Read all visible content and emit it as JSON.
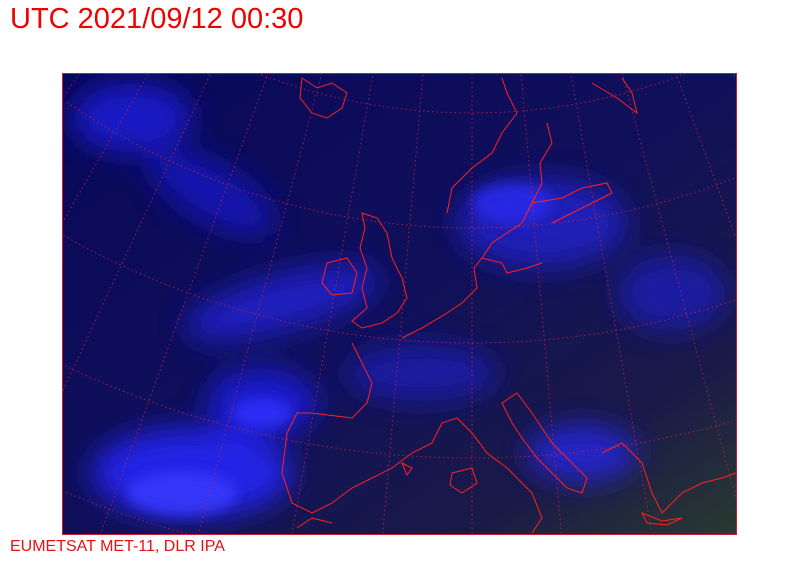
{
  "title": "UTC 2021/09/12 00:30",
  "credit": "EUMETSAT MET-11, DLR IPA",
  "map": {
    "type": "satellite-image",
    "region": "Europe",
    "colors": {
      "background": "#0a0a50",
      "clouds": "#2a2aff",
      "coastline": "#ff2020",
      "graticule": "#d02040",
      "frame": "#c02030"
    }
  }
}
